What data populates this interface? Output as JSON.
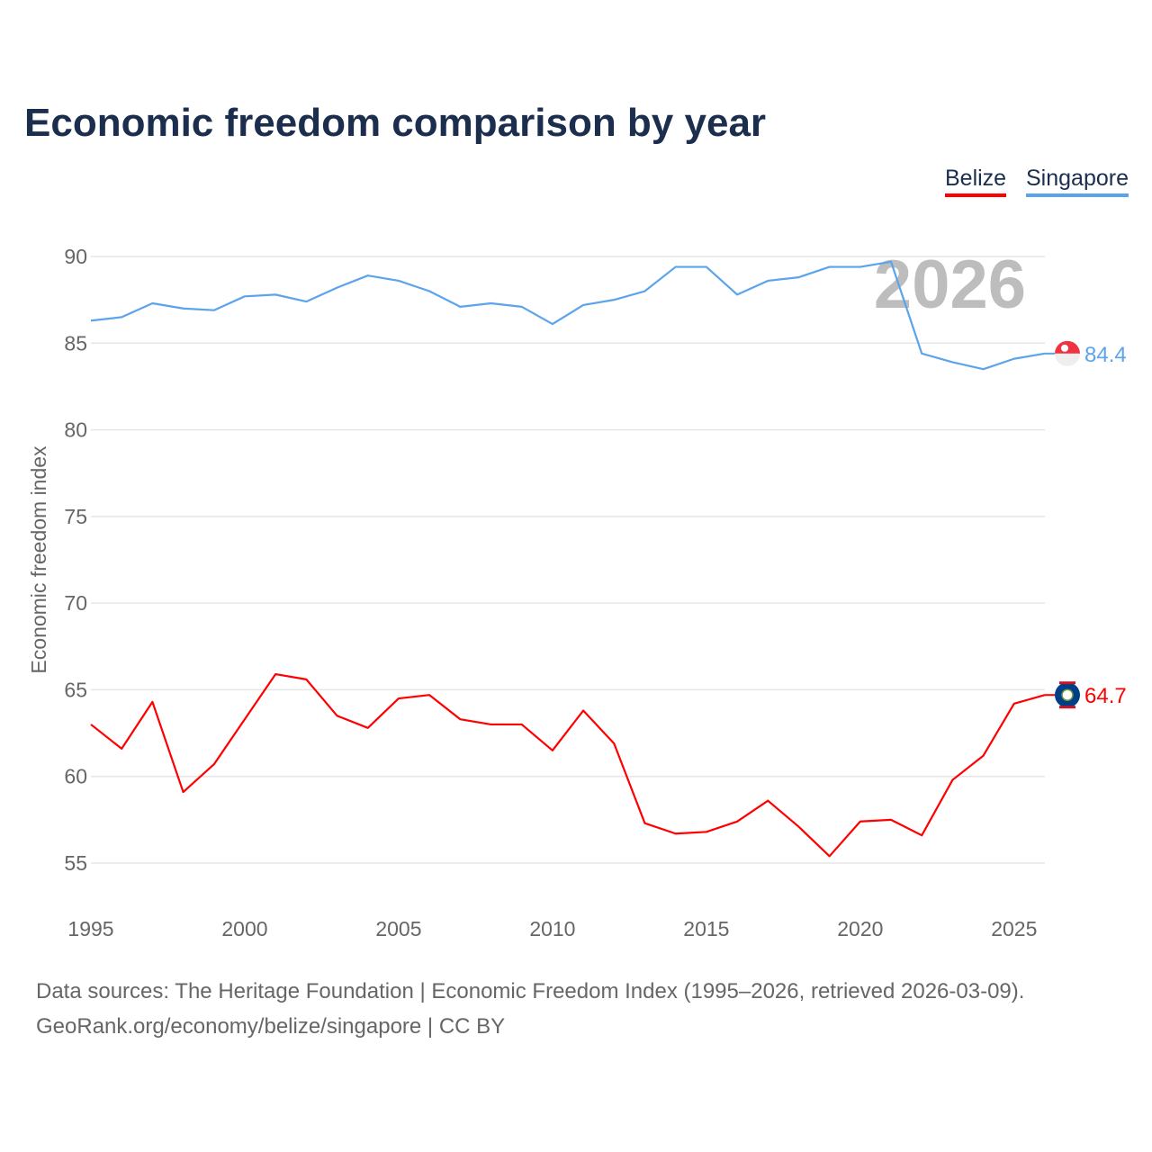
{
  "chart_data": {
    "type": "line",
    "title": "Economic freedom comparison by year",
    "xlabel": "",
    "ylabel": "Economic freedom index",
    "xlim": [
      1995,
      2026
    ],
    "ylim": [
      55,
      90
    ],
    "x_ticks": [
      1995,
      2000,
      2005,
      2010,
      2015,
      2020,
      2025
    ],
    "y_ticks": [
      55,
      60,
      65,
      70,
      75,
      80,
      85,
      90
    ],
    "grid": true,
    "legend_placement": "top-right",
    "year_watermark": "2026",
    "x": [
      1995,
      1996,
      1997,
      1998,
      1999,
      2000,
      2001,
      2002,
      2003,
      2004,
      2005,
      2006,
      2007,
      2008,
      2009,
      2010,
      2011,
      2012,
      2013,
      2014,
      2015,
      2016,
      2017,
      2018,
      2019,
      2020,
      2021,
      2022,
      2023,
      2024,
      2025,
      2026
    ],
    "series": [
      {
        "name": "Belize",
        "color": "#ff0000",
        "end_label": "64.7",
        "values": [
          63.0,
          61.6,
          64.3,
          59.1,
          60.7,
          63.3,
          65.9,
          65.6,
          63.5,
          62.8,
          64.5,
          64.7,
          63.3,
          63.0,
          63.0,
          61.5,
          63.8,
          61.9,
          57.3,
          56.7,
          56.8,
          57.4,
          58.6,
          57.1,
          55.4,
          57.4,
          57.5,
          56.6,
          59.8,
          61.2,
          64.2,
          64.7
        ]
      },
      {
        "name": "Singapore",
        "color": "#5ba4ec",
        "end_label": "84.4",
        "values": [
          86.3,
          86.5,
          87.3,
          87.0,
          86.9,
          87.7,
          87.8,
          87.4,
          88.2,
          88.9,
          88.6,
          88.0,
          87.1,
          87.3,
          87.1,
          86.1,
          87.2,
          87.5,
          88.0,
          89.4,
          89.4,
          87.8,
          88.6,
          88.8,
          89.4,
          89.4,
          89.7,
          84.4,
          83.9,
          83.5,
          84.1,
          84.4
        ]
      }
    ]
  },
  "footer": {
    "line1": "Data sources: The Heritage Foundation | Economic Freedom Index (1995–2026, retrieved 2026-03-09).",
    "line2": "GeoRank.org/economy/belize/singapore | CC BY"
  }
}
